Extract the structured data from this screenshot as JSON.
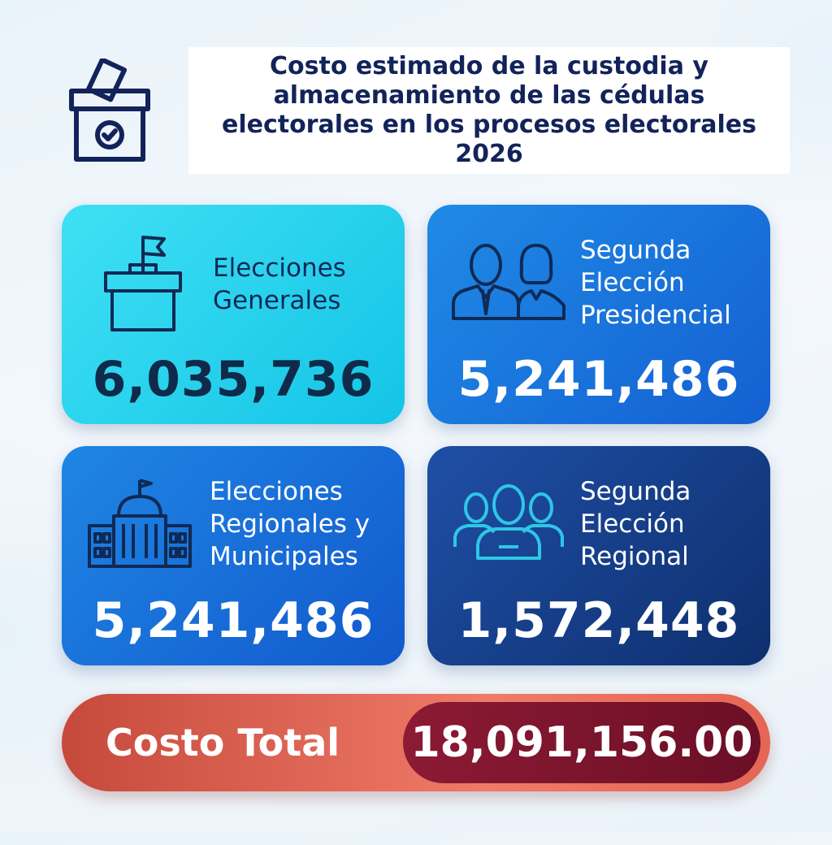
{
  "header": {
    "title": "Costo estimado de la custodia y almacenamiento de las cédulas electorales en los procesos electorales 2026",
    "icon": "ballot-box-icon"
  },
  "cards": [
    {
      "label_lines": [
        "Elecciones",
        "Generales"
      ],
      "value": "6,035,736",
      "icon": "ballot-box-flag-icon"
    },
    {
      "label_lines": [
        "Segunda",
        "Elección",
        "Presidencial"
      ],
      "value": "5,241,486",
      "icon": "candidates-icon"
    },
    {
      "label_lines": [
        "Elecciones",
        "Regionales y",
        "Municipales"
      ],
      "value": "5,241,486",
      "icon": "government-building-icon"
    },
    {
      "label_lines": [
        "Segunda",
        "Elección",
        "Regional"
      ],
      "value": "1,572,448",
      "icon": "group-icon"
    }
  ],
  "total": {
    "label": "Costo Total",
    "value": "18,091,156.00"
  },
  "colors": {
    "title": "#13235a",
    "card_1": "#1fcbe9",
    "card_2": "#1a73dc",
    "card_3": "#176fd9",
    "card_4": "#133d86",
    "total_bar": "#e86a58",
    "total_pill": "#7a1430"
  }
}
